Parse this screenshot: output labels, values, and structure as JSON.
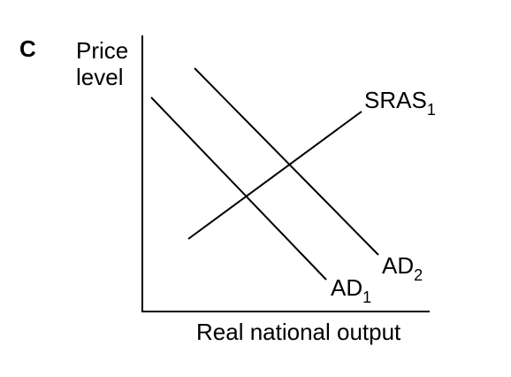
{
  "panel_label": "C",
  "y_axis": {
    "line1": "Price",
    "line2": "level"
  },
  "x_axis": {
    "label": "Real national output"
  },
  "curves": {
    "sras1": {
      "base": "SRAS",
      "sub": "1"
    },
    "ad1": {
      "base": "AD",
      "sub": "1"
    },
    "ad2": {
      "base": "AD",
      "sub": "2"
    }
  },
  "colors": {
    "ink": "#000000",
    "background": "#ffffff"
  }
}
